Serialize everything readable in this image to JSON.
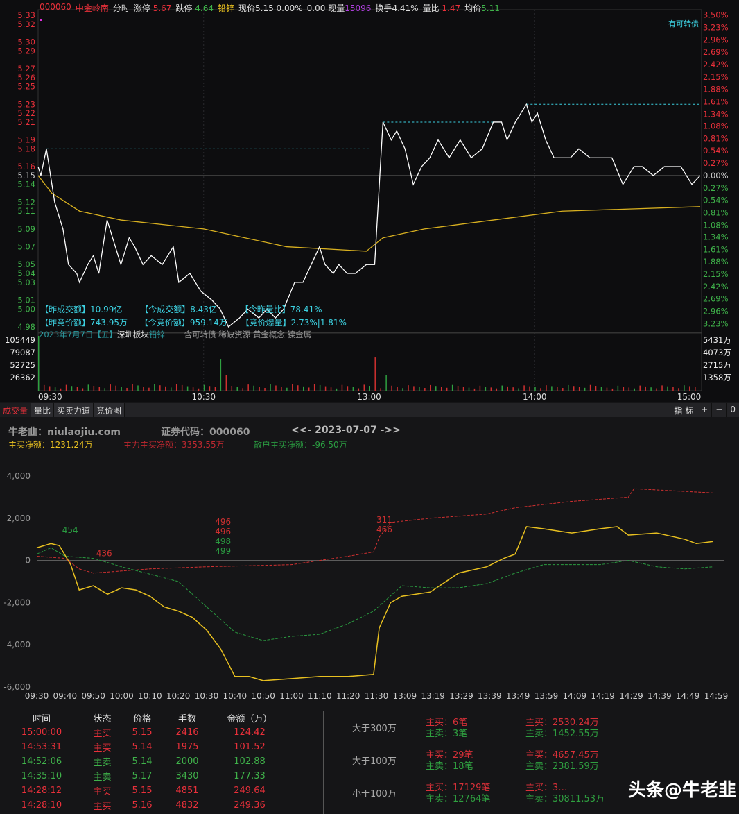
{
  "header": {
    "code": "000060",
    "name": "中金岭南",
    "mode": "分时",
    "limit_up_label": "涨停",
    "limit_up": "5.67",
    "limit_down_label": "跌停",
    "limit_down": "4.64",
    "sector": "铅锌",
    "price_label": "现价",
    "price": "5.15",
    "change_pct": "0.00%",
    "change": "0.00",
    "cur_vol_label": "现量",
    "cur_vol": "15096",
    "turnover_label": "换手",
    "turnover": "4.41%",
    "vol_ratio_label": "量比",
    "vol_ratio": "1.47",
    "avg_label": "均价",
    "avg": "5.11"
  },
  "badge": "有可转债",
  "price_axis": [
    "5.33",
    "5.32",
    "5.30",
    "5.29",
    "5.27",
    "5.26",
    "5.25",
    "5.23",
    "5.22",
    "5.21",
    "5.19",
    "5.18",
    "5.16",
    "5.15",
    "5.14",
    "5.12",
    "5.11",
    "5.09",
    "5.07",
    "5.05",
    "5.04",
    "5.03",
    "5.01",
    "5.00",
    "4.98"
  ],
  "pct_axis": [
    {
      "v": 3.5,
      "t": "3.50%"
    },
    {
      "v": 3.23,
      "t": "3.23%"
    },
    {
      "v": 2.96,
      "t": "2.96%"
    },
    {
      "v": 2.69,
      "t": "2.69%"
    },
    {
      "v": 2.42,
      "t": "2.42%"
    },
    {
      "v": 2.15,
      "t": "2.15%"
    },
    {
      "v": 1.88,
      "t": "1.88%"
    },
    {
      "v": 1.61,
      "t": "1.61%"
    },
    {
      "v": 1.34,
      "t": "1.34%"
    },
    {
      "v": 1.08,
      "t": "1.08%"
    },
    {
      "v": 0.81,
      "t": "0.81%"
    },
    {
      "v": 0.54,
      "t": "0.54%"
    },
    {
      "v": 0.27,
      "t": "0.27%"
    },
    {
      "v": 0,
      "t": "0.00%"
    },
    {
      "v": -0.27,
      "t": "0.27%"
    },
    {
      "v": -0.54,
      "t": "0.54%"
    },
    {
      "v": -0.81,
      "t": "0.81%"
    },
    {
      "v": -1.08,
      "t": "1.08%"
    },
    {
      "v": -1.34,
      "t": "1.34%"
    },
    {
      "v": -1.61,
      "t": "1.61%"
    },
    {
      "v": -1.88,
      "t": "1.88%"
    },
    {
      "v": -2.15,
      "t": "2.15%"
    },
    {
      "v": -2.42,
      "t": "2.42%"
    },
    {
      "v": -2.69,
      "t": "2.69%"
    },
    {
      "v": -2.96,
      "t": "2.96%"
    },
    {
      "v": -3.23,
      "t": "3.23%"
    }
  ],
  "vol_axis_left": [
    "105449",
    "79087",
    "52725",
    "26362"
  ],
  "vol_axis_right": [
    "5431万",
    "4073万",
    "2715万",
    "1358万"
  ],
  "time_axis": [
    "09:30",
    "10:30",
    "13:00",
    "14:00",
    "15:00"
  ],
  "info": {
    "l1": [
      "【昨成交额】10.99亿",
      "【今成交额】8.43亿",
      "【今昨量比】78.41%"
    ],
    "l2": [
      "【昨竞价额】743.95万",
      "【今竞价额】959.14万",
      "【竞价爆量】2.73%|1.81%"
    ],
    "date": "2023年7月7日【五】",
    "board": "深圳板块",
    "sector": "铅锌",
    "concepts": "含可转债 稀缺资源 黄金概念 镍金属"
  },
  "chart_data": [
    {
      "type": "line",
      "prev_close": 5.15,
      "ylim": [
        4.98,
        5.33
      ],
      "price": [
        [
          "09:30",
          5.16
        ],
        [
          "09:31",
          5.15
        ],
        [
          "09:33",
          5.18
        ],
        [
          "09:36",
          5.12
        ],
        [
          "09:39",
          5.09
        ],
        [
          "09:41",
          5.05
        ],
        [
          "09:44",
          5.04
        ],
        [
          "09:45",
          5.03
        ],
        [
          "09:48",
          5.05
        ],
        [
          "09:50",
          5.06
        ],
        [
          "09:52",
          5.04
        ],
        [
          "09:55",
          5.1
        ],
        [
          "09:58",
          5.07
        ],
        [
          "10:00",
          5.05
        ],
        [
          "10:03",
          5.08
        ],
        [
          "10:05",
          5.07
        ],
        [
          "10:08",
          5.05
        ],
        [
          "10:11",
          5.06
        ],
        [
          "10:15",
          5.05
        ],
        [
          "10:19",
          5.07
        ],
        [
          "10:21",
          5.03
        ],
        [
          "10:25",
          5.04
        ],
        [
          "10:29",
          5.02
        ],
        [
          "10:33",
          5.01
        ],
        [
          "10:36",
          5.0
        ],
        [
          "10:39",
          4.98
        ],
        [
          "10:43",
          4.99
        ],
        [
          "10:46",
          5.0
        ],
        [
          "10:50",
          4.99
        ],
        [
          "10:53",
          5.0
        ],
        [
          "10:56",
          4.99
        ],
        [
          "10:59",
          5.0
        ],
        [
          "11:03",
          5.03
        ],
        [
          "11:06",
          5.03
        ],
        [
          "11:09",
          5.05
        ],
        [
          "11:12",
          5.07
        ],
        [
          "11:14",
          5.05
        ],
        [
          "11:17",
          5.04
        ],
        [
          "11:19",
          5.05
        ],
        [
          "11:22",
          5.04
        ],
        [
          "11:25",
          5.04
        ],
        [
          "11:29",
          5.05
        ],
        [
          "13:02",
          5.05
        ],
        [
          "13:05",
          5.21
        ],
        [
          "13:08",
          5.19
        ],
        [
          "13:10",
          5.2
        ],
        [
          "13:13",
          5.18
        ],
        [
          "13:16",
          5.14
        ],
        [
          "13:19",
          5.16
        ],
        [
          "13:22",
          5.17
        ],
        [
          "13:25",
          5.19
        ],
        [
          "13:29",
          5.17
        ],
        [
          "13:33",
          5.19
        ],
        [
          "13:37",
          5.17
        ],
        [
          "13:41",
          5.18
        ],
        [
          "13:45",
          5.21
        ],
        [
          "13:48",
          5.21
        ],
        [
          "13:50",
          5.19
        ],
        [
          "13:53",
          5.21
        ],
        [
          "13:57",
          5.23
        ],
        [
          "13:59",
          5.21
        ],
        [
          "14:01",
          5.22
        ],
        [
          "14:04",
          5.19
        ],
        [
          "14:07",
          5.17
        ],
        [
          "14:13",
          5.17
        ],
        [
          "14:16",
          5.18
        ],
        [
          "14:20",
          5.17
        ],
        [
          "14:28",
          5.17
        ],
        [
          "14:32",
          5.14
        ],
        [
          "14:36",
          5.16
        ],
        [
          "14:39",
          5.16
        ],
        [
          "14:43",
          5.15
        ],
        [
          "14:47",
          5.16
        ],
        [
          "14:53",
          5.16
        ],
        [
          "14:57",
          5.14
        ],
        [
          "15:00",
          5.15
        ]
      ],
      "avg": [
        [
          "09:30",
          5.15
        ],
        [
          "09:35",
          5.13
        ],
        [
          "09:45",
          5.11
        ],
        [
          "10:00",
          5.1
        ],
        [
          "10:30",
          5.09
        ],
        [
          "10:45",
          5.08
        ],
        [
          "11:00",
          5.07
        ],
        [
          "11:29",
          5.065
        ],
        [
          "13:05",
          5.08
        ],
        [
          "13:20",
          5.09
        ],
        [
          "13:45",
          5.1
        ],
        [
          "14:10",
          5.11
        ],
        [
          "15:00",
          5.115
        ]
      ],
      "high_marks": [
        [
          "09:33",
          "11:30",
          5.18
        ],
        [
          "13:05",
          "13:45",
          5.21
        ],
        [
          "13:57",
          "15:00",
          5.23
        ]
      ],
      "volume_spikes": [
        [
          "09:30",
          105449
        ],
        [
          "09:31",
          40000
        ],
        [
          "10:37",
          60000
        ],
        [
          "10:38",
          30000
        ],
        [
          "13:02",
          64000
        ],
        [
          "13:03",
          45000
        ],
        [
          "13:06",
          30000
        ]
      ]
    },
    {
      "type": "line",
      "ylim": [
        -6000,
        4000
      ],
      "yticks": [
        "4,000",
        "2,000",
        "0",
        "-2,000",
        "-4,000",
        "-6,000"
      ],
      "xticks": [
        "09:30",
        "09:40",
        "09:50",
        "10:00",
        "10:10",
        "10:20",
        "10:30",
        "10:40",
        "10:50",
        "11:00",
        "11:10",
        "11:20",
        "11:30",
        "13:09",
        "13:19",
        "13:29",
        "13:39",
        "13:49",
        "13:59",
        "14:09",
        "14:19",
        "14:29",
        "14:39",
        "14:49",
        "14:59"
      ],
      "series": [
        {
          "name": "主买净额",
          "color": "#e8c020",
          "dash": false,
          "points": [
            [
              "09:30",
              600
            ],
            [
              "09:35",
              800
            ],
            [
              "09:38",
              700
            ],
            [
              "09:42",
              -200
            ],
            [
              "09:45",
              -1400
            ],
            [
              "09:50",
              -1200
            ],
            [
              "09:55",
              -1600
            ],
            [
              "10:00",
              -1300
            ],
            [
              "10:05",
              -1400
            ],
            [
              "10:10",
              -1700
            ],
            [
              "10:15",
              -2200
            ],
            [
              "10:20",
              -2400
            ],
            [
              "10:25",
              -2700
            ],
            [
              "10:30",
              -3300
            ],
            [
              "10:35",
              -4200
            ],
            [
              "10:40",
              -5500
            ],
            [
              "10:45",
              -5500
            ],
            [
              "10:50",
              -5700
            ],
            [
              "11:00",
              -5600
            ],
            [
              "11:10",
              -5500
            ],
            [
              "11:20",
              -5500
            ],
            [
              "11:29",
              -5400
            ],
            [
              "13:01",
              -3200
            ],
            [
              "13:05",
              -2000
            ],
            [
              "13:09",
              -1700
            ],
            [
              "13:19",
              -1500
            ],
            [
              "13:29",
              -600
            ],
            [
              "13:39",
              -300
            ],
            [
              "13:45",
              100
            ],
            [
              "13:49",
              300
            ],
            [
              "13:53",
              1600
            ],
            [
              "13:59",
              1500
            ],
            [
              "14:09",
              1300
            ],
            [
              "14:19",
              1500
            ],
            [
              "14:25",
              1600
            ],
            [
              "14:29",
              1200
            ],
            [
              "14:39",
              1300
            ],
            [
              "14:49",
              1000
            ],
            [
              "14:53",
              800
            ],
            [
              "14:59",
              900
            ]
          ]
        },
        {
          "name": "主力主买净额",
          "color": "#d03030",
          "dash": true,
          "points": [
            [
              "09:30",
              200
            ],
            [
              "09:40",
              100
            ],
            [
              "09:45",
              -400
            ],
            [
              "09:50",
              -600
            ],
            [
              "10:00",
              -500
            ],
            [
              "10:10",
              -400
            ],
            [
              "10:30",
              -300
            ],
            [
              "11:00",
              -200
            ],
            [
              "11:10",
              0
            ],
            [
              "11:20",
              200
            ],
            [
              "11:29",
              400
            ],
            [
              "13:01",
              1100
            ],
            [
              "13:05",
              1800
            ],
            [
              "13:19",
              2000
            ],
            [
              "13:39",
              2200
            ],
            [
              "13:49",
              2500
            ],
            [
              "14:09",
              2800
            ],
            [
              "14:29",
              3000
            ],
            [
              "14:31",
              3400
            ],
            [
              "14:59",
              3200
            ]
          ]
        },
        {
          "name": "散户主买净额",
          "color": "#2a9a40",
          "dash": true,
          "points": [
            [
              "09:30",
              300
            ],
            [
              "09:35",
              600
            ],
            [
              "09:40",
              200
            ],
            [
              "09:50",
              100
            ],
            [
              "10:00",
              -300
            ],
            [
              "10:20",
              -1000
            ],
            [
              "10:30",
              -2200
            ],
            [
              "10:40",
              -3400
            ],
            [
              "10:50",
              -3800
            ],
            [
              "11:00",
              -3600
            ],
            [
              "11:10",
              -3500
            ],
            [
              "11:20",
              -3000
            ],
            [
              "11:29",
              -2400
            ],
            [
              "13:09",
              -1200
            ],
            [
              "13:19",
              -1300
            ],
            [
              "13:29",
              -1300
            ],
            [
              "13:39",
              -1100
            ],
            [
              "13:45",
              -800
            ],
            [
              "13:49",
              -600
            ],
            [
              "13:59",
              -200
            ],
            [
              "14:19",
              -200
            ],
            [
              "14:29",
              0
            ],
            [
              "14:39",
              -300
            ],
            [
              "14:49",
              -400
            ],
            [
              "14:59",
              -300
            ]
          ]
        }
      ],
      "annotations": [
        {
          "t": "09:39",
          "v": 1300,
          "text": "454",
          "color": "#2a9a40"
        },
        {
          "t": "09:51",
          "v": 200,
          "text": "436",
          "color": "#d03030"
        },
        {
          "t": "10:33",
          "v": 1700,
          "text": "496",
          "color": "#d03030"
        },
        {
          "t": "10:33",
          "v": 1300,
          "text": "496",
          "color": "#d03030"
        },
        {
          "t": "10:33",
          "v": 900,
          "text": "498",
          "color": "#2a9a40"
        },
        {
          "t": "10:33",
          "v": 500,
          "text": "499",
          "color": "#2a9a40"
        },
        {
          "t": "11:30",
          "v": 1800,
          "text": "311",
          "color": "#d03030"
        },
        {
          "t": "11:30",
          "v": 1400,
          "text": "466",
          "color": "#d03030"
        }
      ]
    }
  ],
  "tabs": [
    "成交量",
    "量比",
    "买卖力道",
    "竞价图"
  ],
  "tab_right": [
    "指 标",
    "+",
    "−",
    "0"
  ],
  "panel": {
    "site": "牛老韭：niulaojiu.com",
    "code": "证券代码：000060",
    "date": "<<- 2023-07-07 ->>",
    "net": "主买净额：1231.24万",
    "main_net": "主力主买净额：3353.55万",
    "retail_net": "散户主买净额：-96.50万"
  },
  "trades": {
    "headers": [
      "时间",
      "状态",
      "价格",
      "手数",
      "金额（万）"
    ],
    "rows": [
      {
        "time": "15:00:00",
        "side": "主买",
        "price": "5.15",
        "lots": "2416",
        "amount": "124.42",
        "buy": true
      },
      {
        "time": "14:53:31",
        "side": "主买",
        "price": "5.14",
        "lots": "1975",
        "amount": "101.52",
        "buy": true
      },
      {
        "time": "14:52:06",
        "side": "主卖",
        "price": "5.14",
        "lots": "2000",
        "amount": "102.88",
        "buy": false
      },
      {
        "time": "14:35:10",
        "side": "主卖",
        "price": "5.17",
        "lots": "3430",
        "amount": "177.33",
        "buy": false
      },
      {
        "time": "14:28:12",
        "side": "主买",
        "price": "5.15",
        "lots": "4851",
        "amount": "249.64",
        "buy": true
      },
      {
        "time": "14:28:10",
        "side": "主买",
        "price": "5.16",
        "lots": "4832",
        "amount": "249.36",
        "buy": true
      }
    ]
  },
  "summary": [
    {
      "label": "大于300万",
      "buy_n": "主买：6笔",
      "sell_n": "主卖：3笔",
      "buy_a": "主买：2530.24万",
      "sell_a": "主卖：1452.55万"
    },
    {
      "label": "大于100万",
      "buy_n": "主买：29笔",
      "sell_n": "主卖：18笔",
      "buy_a": "主买：4657.45万",
      "sell_a": "主卖：2381.59万"
    },
    {
      "label": "小于100万",
      "buy_n": "主买：17129笔",
      "sell_n": "主卖：12764笔",
      "buy_a": "主买：3…",
      "sell_a": "主卖：30811.53万"
    }
  ],
  "watermark": "头条@牛老韭"
}
